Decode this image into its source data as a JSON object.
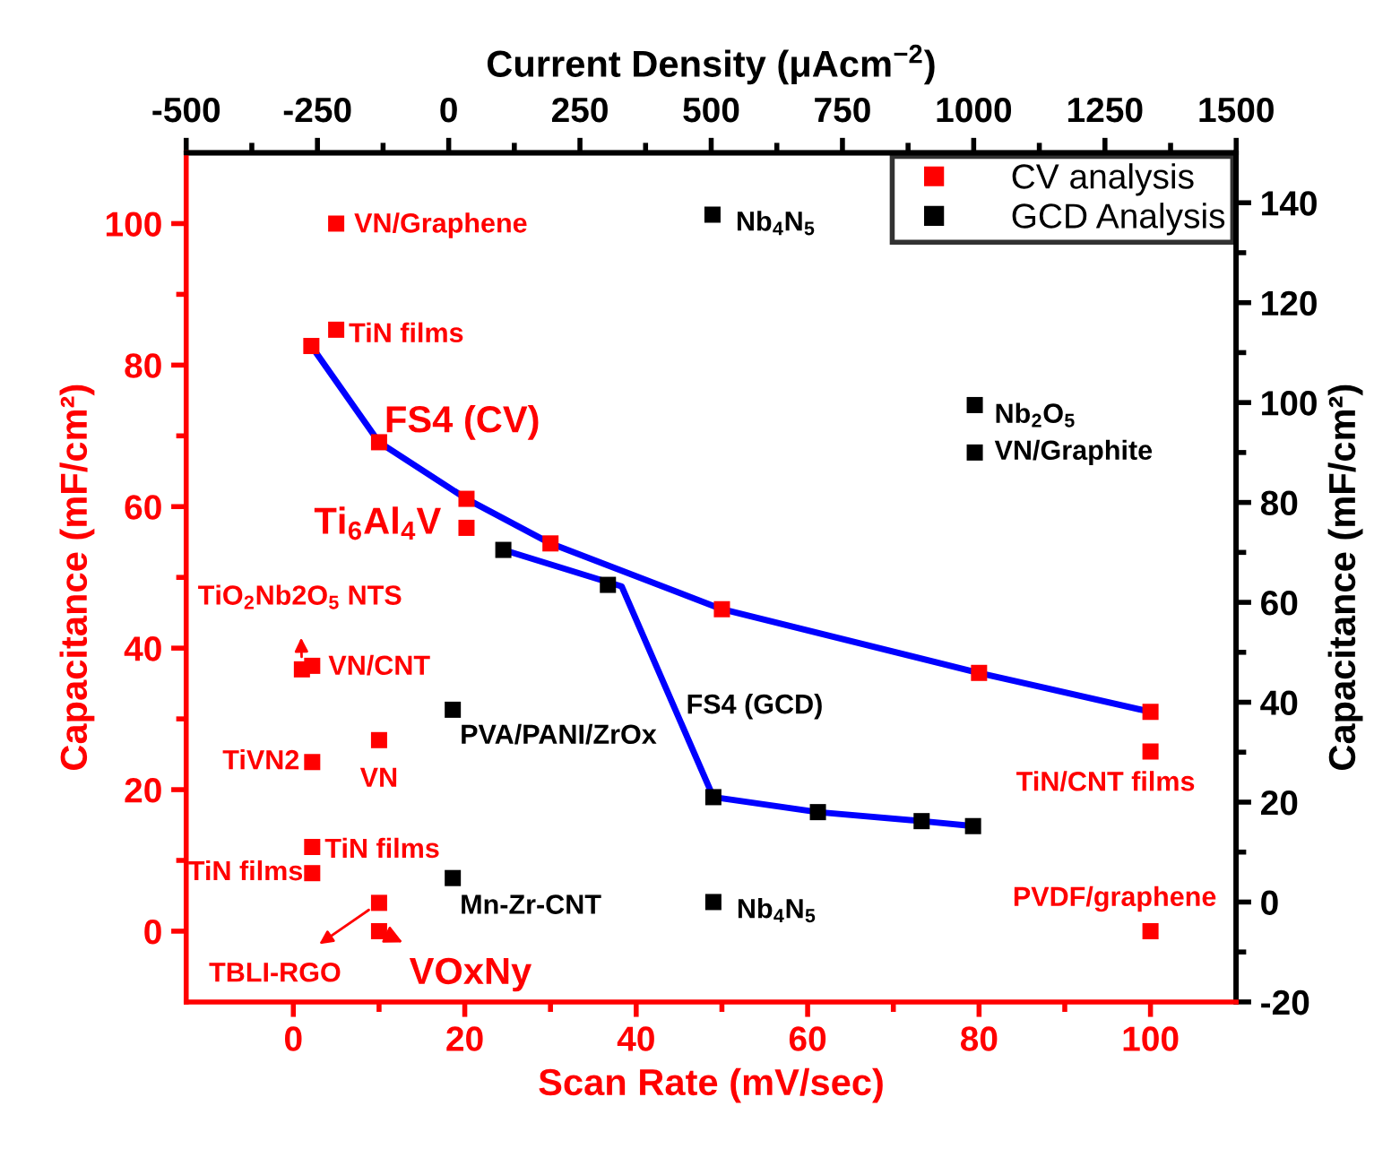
{
  "chart_data": {
    "type": "scatter",
    "xlabel": "Scan Rate (mV/sec)",
    "ylabel": "Capacitance (mF/cm²)",
    "y2label": "Capacitance (mF/cm²)",
    "x2label": "Current Density (μAcm$^{−2}$)",
    "xlim": [
      -12.5,
      110
    ],
    "xticks": [
      0,
      20,
      40,
      60,
      80,
      100
    ],
    "ylim": [
      -10,
      110
    ],
    "yticks": [
      0,
      20,
      40,
      60,
      80,
      100
    ],
    "y2lim": [
      -20,
      150
    ],
    "y2ticks": [
      -20,
      0,
      20,
      40,
      60,
      80,
      100,
      120,
      140
    ],
    "x2lim": [
      -500,
      1500
    ],
    "x2ticks": [
      -500,
      -250,
      0,
      250,
      500,
      750,
      1000,
      1250,
      1500
    ],
    "marker": "square",
    "legend": "top right",
    "grid": false,
    "series": [
      {
        "name": "CV analysis",
        "color": "#ff0000",
        "x": [
          2.1,
          10,
          20.2,
          30,
          50,
          80,
          100,
          5,
          5,
          20.2,
          1,
          2.2,
          10,
          2.2,
          2.2,
          2.2,
          10,
          10,
          100,
          100
        ],
        "values": [
          82.7,
          69.1,
          61.1,
          54.8,
          45.5,
          36.5,
          31.0,
          100,
          85,
          57,
          37,
          37.5,
          27,
          23.9,
          11.9,
          8.2,
          4,
          0,
          25.4,
          0
        ]
      },
      {
        "name": "GCD Analysis",
        "axis": "y2",
        "color": "#000000",
        "x": [
          48.9,
          79.5,
          79.5,
          24.5,
          36.7,
          49,
          61.2,
          73.3,
          79.3,
          18.6,
          18.6,
          49
        ],
        "values": [
          137.6,
          99.5,
          90,
          70.5,
          63.5,
          21,
          18,
          16.2,
          15.2,
          38.5,
          4.8,
          0
        ]
      },
      {
        "type": "line",
        "color": "#0000ff",
        "marker": "none",
        "line_style": "solid",
        "x": [
          2.1,
          10,
          20.2,
          30,
          50,
          80,
          100
        ],
        "values": [
          82.7,
          69.1,
          61.1,
          54.8,
          45.5,
          36.5,
          31.0
        ]
      },
      {
        "type": "line",
        "axis": "y2",
        "color": "#0000ff",
        "marker": "none",
        "line_style": "solid",
        "x": [
          24.5,
          38.3,
          49,
          61.2,
          73.3,
          79.3
        ],
        "values": [
          70.5,
          63.2,
          21,
          18,
          16.2,
          15.2
        ]
      }
    ],
    "annotations": [
      {
        "text": "VN/Graphene",
        "x": 5,
        "y": 100
      },
      {
        "text": "TiN films",
        "x": 5,
        "y": 85
      },
      {
        "text": "FS4 (CV)",
        "x": 10,
        "y": 69.1
      },
      {
        "text": "Ti$_{6}$Al$_{4}$V",
        "x": 20.2,
        "y": 57
      },
      {
        "text": "TiO$_{2}$Nb2O$_{5}$ NTS",
        "x": 1,
        "y": 37
      },
      {
        "text": "VN/CNT",
        "x": 2.2,
        "y": 37.5
      },
      {
        "text": "VN",
        "x": 10,
        "y": 27
      },
      {
        "text": "TiVN2",
        "x": 2.2,
        "y": 23.9
      },
      {
        "text": "TiN films",
        "x": 2.2,
        "y": 11.9
      },
      {
        "text": "TiN films",
        "x": 2.2,
        "y": 8.2
      },
      {
        "text": "TBLI-RGO",
        "x": 10,
        "y": 4
      },
      {
        "text": "VOxNy",
        "x": 10,
        "y": 0
      },
      {
        "text": "TiN/CNT films",
        "x": 100,
        "y": 25.4
      },
      {
        "text": "PVDF/graphene",
        "x": 100,
        "y": 0
      },
      "Nb$_{4}$N$_{5}$",
      "Nb$_{2}$O$_{5}$",
      "VN/Graphite",
      "FS4 (GCD)",
      "PVA/PANI/ZrOx",
      "Mn-Zr-CNT",
      "Nb$_{4}$N$_{5}$"
    ]
  }
}
